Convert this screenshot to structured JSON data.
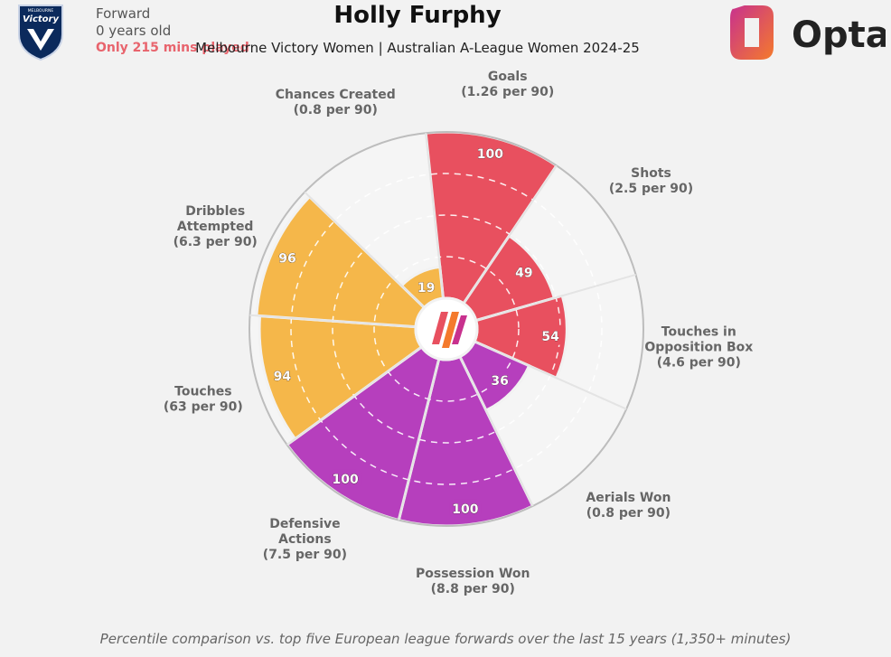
{
  "header": {
    "player_name": "Holly Furphy",
    "subtitle": "Melbourne Victory Women | Australian A-League Women 2024-25",
    "position": "Forward",
    "age": "0 years old",
    "minutes_warning": "Only 215 mins played",
    "badge_text": "Victory",
    "badge_small": "MELBOURNE",
    "brand": "Opta"
  },
  "footnote": "Percentile comparison vs. top five European league forwards over the last 15 years (1,350+ minutes)",
  "colors": {
    "attacking": "#e8505f",
    "possession": "#f5b74a",
    "defending": "#b63fbd",
    "background": "#f2f2f2",
    "wedge_bg": "#f5f5f5"
  },
  "chart_data": {
    "type": "pie",
    "subtype": "polar-percentile-radar",
    "scale": [
      0,
      100
    ],
    "series": [
      {
        "name": "Goals",
        "line1": "Goals",
        "line2": "",
        "per90": "(1.26 per 90)",
        "value": 100,
        "group": "attacking"
      },
      {
        "name": "Shots",
        "line1": "Shots",
        "line2": "",
        "per90": "(2.5 per 90)",
        "value": 49,
        "group": "attacking"
      },
      {
        "name": "Touches in Opposition Box",
        "line1": "Touches in",
        "line2": "Opposition Box",
        "per90": "(4.6 per 90)",
        "value": 54,
        "group": "attacking"
      },
      {
        "name": "Aerials Won",
        "line1": "Aerials Won",
        "line2": "",
        "per90": "(0.8 per 90)",
        "value": 36,
        "group": "defending"
      },
      {
        "name": "Possession Won",
        "line1": "Possession Won",
        "line2": "",
        "per90": "(8.8 per 90)",
        "value": 100,
        "group": "defending"
      },
      {
        "name": "Defensive Actions",
        "line1": "Defensive",
        "line2": "Actions",
        "per90": "(7.5 per 90)",
        "value": 100,
        "group": "defending"
      },
      {
        "name": "Touches",
        "line1": "Touches",
        "line2": "",
        "per90": "(63 per 90)",
        "value": 94,
        "group": "possession"
      },
      {
        "name": "Dribbles Attempted",
        "line1": "Dribbles",
        "line2": "Attempted",
        "per90": "(6.3 per 90)",
        "value": 96,
        "group": "possession"
      },
      {
        "name": "Chances Created",
        "line1": "Chances Created",
        "line2": "",
        "per90": "(0.8 per 90)",
        "value": 19,
        "group": "possession"
      }
    ]
  }
}
